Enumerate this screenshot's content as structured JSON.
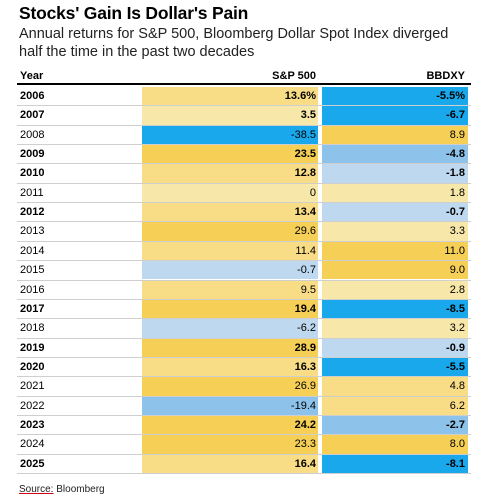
{
  "title": "Stocks' Gain Is Dollar's Pain",
  "subtitle": "Annual returns for S&P 500, Bloomberg Dollar Spot Index diverged half the time in the past two decades",
  "source_label": "Source:",
  "source_name": "Bloomberg",
  "colors": {
    "positive_light": "#f7e7a8",
    "positive_mid": "#f8dc86",
    "positive_strong": "#f6cf57",
    "negative_light": "#bed8ef",
    "negative_mid": "#8dc3ea",
    "negative_strong": "#19a8ec"
  },
  "chart_data": {
    "type": "table",
    "columns": [
      "Year",
      "S&P 500",
      "BBDXY"
    ],
    "rows": [
      {
        "year": "2006",
        "sp500": "13.6%",
        "bbdxy": "-5.5%",
        "diverged": true
      },
      {
        "year": "2007",
        "sp500": "3.5",
        "bbdxy": "-6.7",
        "diverged": true
      },
      {
        "year": "2008",
        "sp500": "-38.5",
        "bbdxy": "8.9",
        "diverged": false
      },
      {
        "year": "2009",
        "sp500": "23.5",
        "bbdxy": "-4.8",
        "diverged": true
      },
      {
        "year": "2010",
        "sp500": "12.8",
        "bbdxy": "-1.8",
        "diverged": true
      },
      {
        "year": "2011",
        "sp500": "0",
        "bbdxy": "1.8",
        "diverged": false
      },
      {
        "year": "2012",
        "sp500": "13.4",
        "bbdxy": "-0.7",
        "diverged": true
      },
      {
        "year": "2013",
        "sp500": "29.6",
        "bbdxy": "3.3",
        "diverged": false
      },
      {
        "year": "2014",
        "sp500": "11.4",
        "bbdxy": "11.0",
        "diverged": false
      },
      {
        "year": "2015",
        "sp500": "-0.7",
        "bbdxy": "9.0",
        "diverged": false
      },
      {
        "year": "2016",
        "sp500": "9.5",
        "bbdxy": "2.8",
        "diverged": false
      },
      {
        "year": "2017",
        "sp500": "19.4",
        "bbdxy": "-8.5",
        "diverged": true
      },
      {
        "year": "2018",
        "sp500": "-6.2",
        "bbdxy": "3.2",
        "diverged": false
      },
      {
        "year": "2019",
        "sp500": "28.9",
        "bbdxy": "-0.9",
        "diverged": true
      },
      {
        "year": "2020",
        "sp500": "16.3",
        "bbdxy": "-5.5",
        "diverged": true
      },
      {
        "year": "2021",
        "sp500": "26.9",
        "bbdxy": "4.8",
        "diverged": false
      },
      {
        "year": "2022",
        "sp500": "-19.4",
        "bbdxy": "6.2",
        "diverged": false
      },
      {
        "year": "2023",
        "sp500": "24.2",
        "bbdxy": "-2.7",
        "diverged": true
      },
      {
        "year": "2024",
        "sp500": "23.3",
        "bbdxy": "8.0",
        "diverged": false
      },
      {
        "year": "2025",
        "sp500": "16.4",
        "bbdxy": "-8.1",
        "diverged": true
      }
    ]
  }
}
